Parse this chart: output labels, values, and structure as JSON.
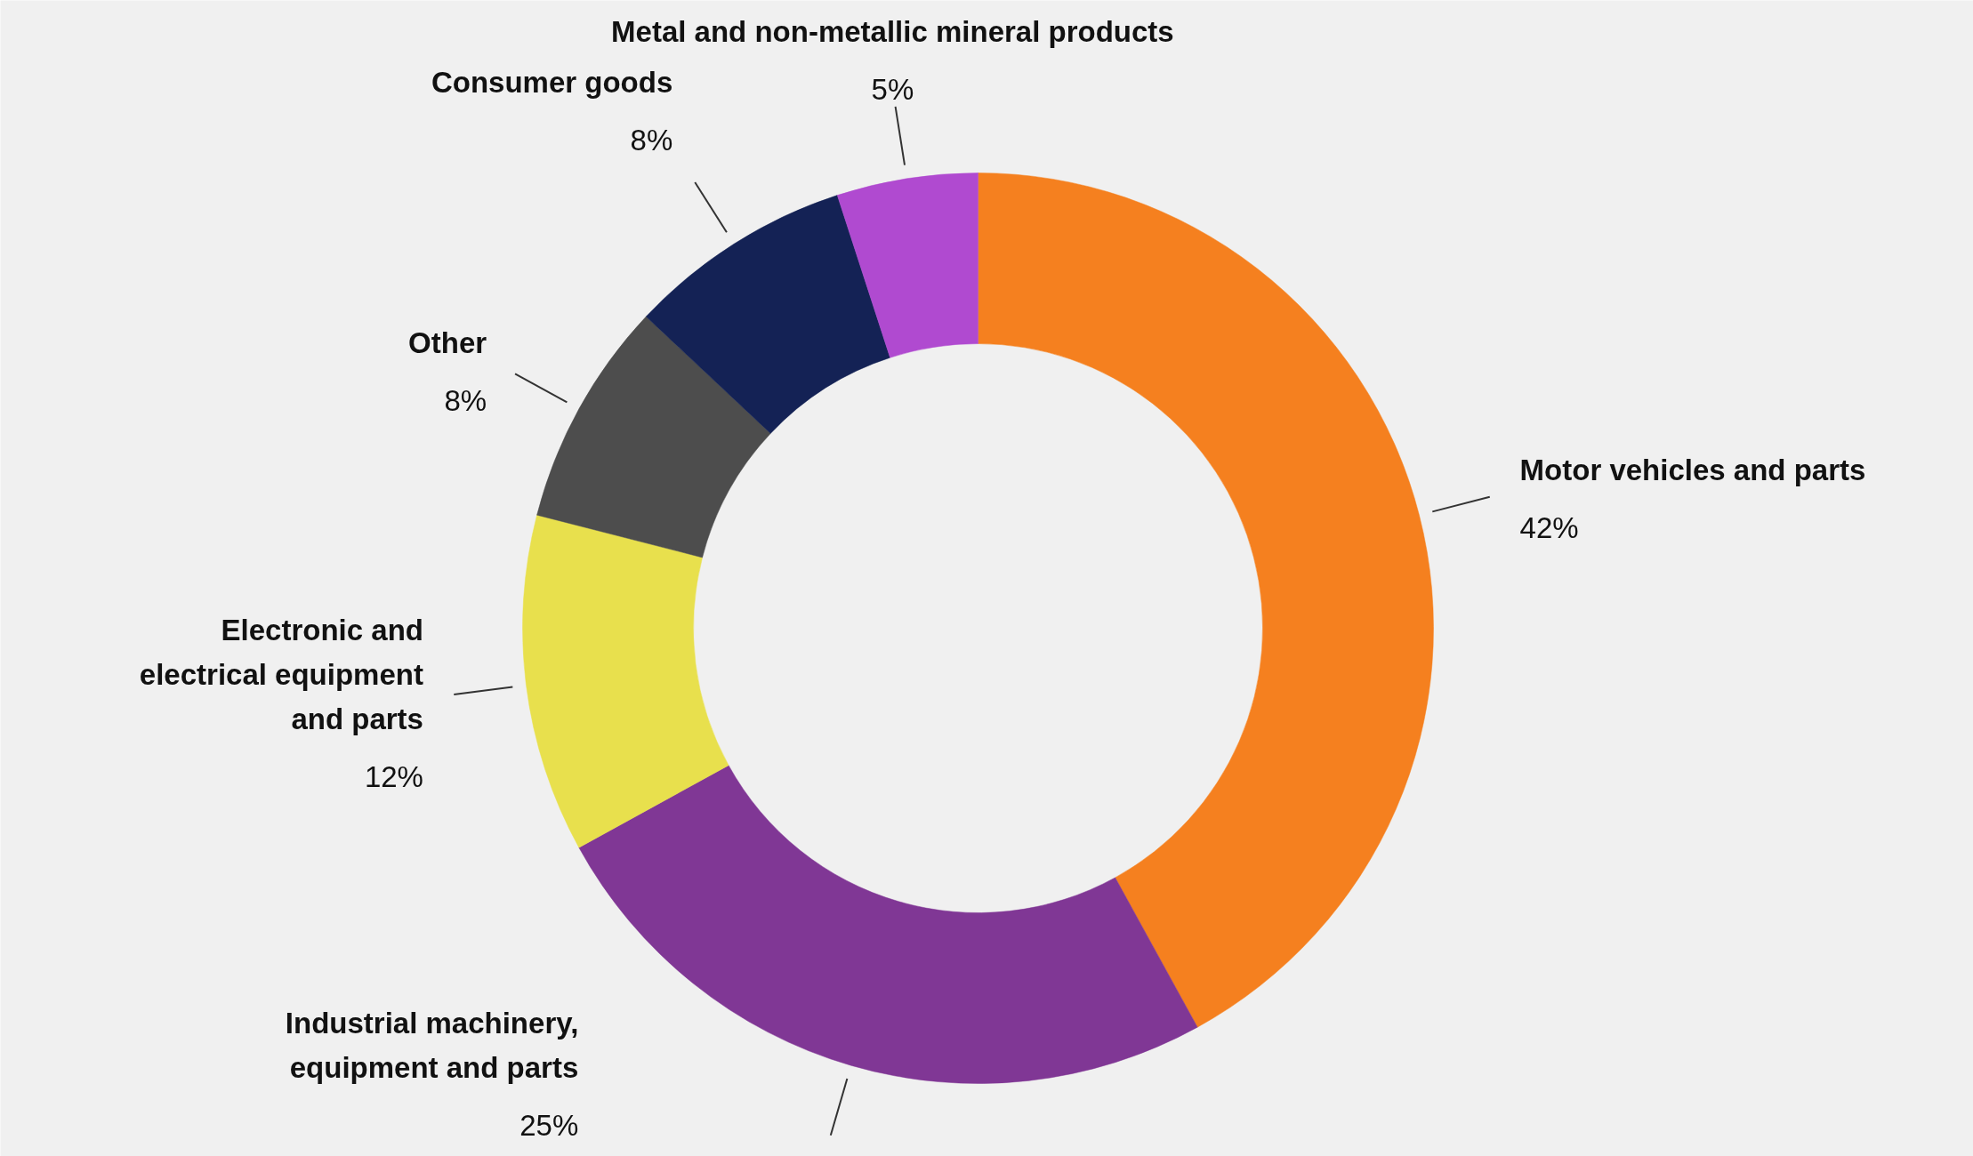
{
  "chart_data": {
    "type": "donut",
    "categories": [
      "Motor vehicles and parts",
      "Industrial machinery,\nequipment and parts",
      "Electronic and\nelectrical equipment\nand parts",
      "Other",
      "Consumer goods",
      "Metal and non-metallic mineral products"
    ],
    "values": [
      42,
      25,
      12,
      8,
      8,
      5
    ],
    "value_labels": [
      "42%",
      "25%",
      "12%",
      "8%",
      "8%",
      "5%"
    ],
    "colors": [
      "#f5801f",
      "#803795",
      "#e8e04d",
      "#4d4d4d",
      "#142255",
      "#b04ad0"
    ]
  }
}
